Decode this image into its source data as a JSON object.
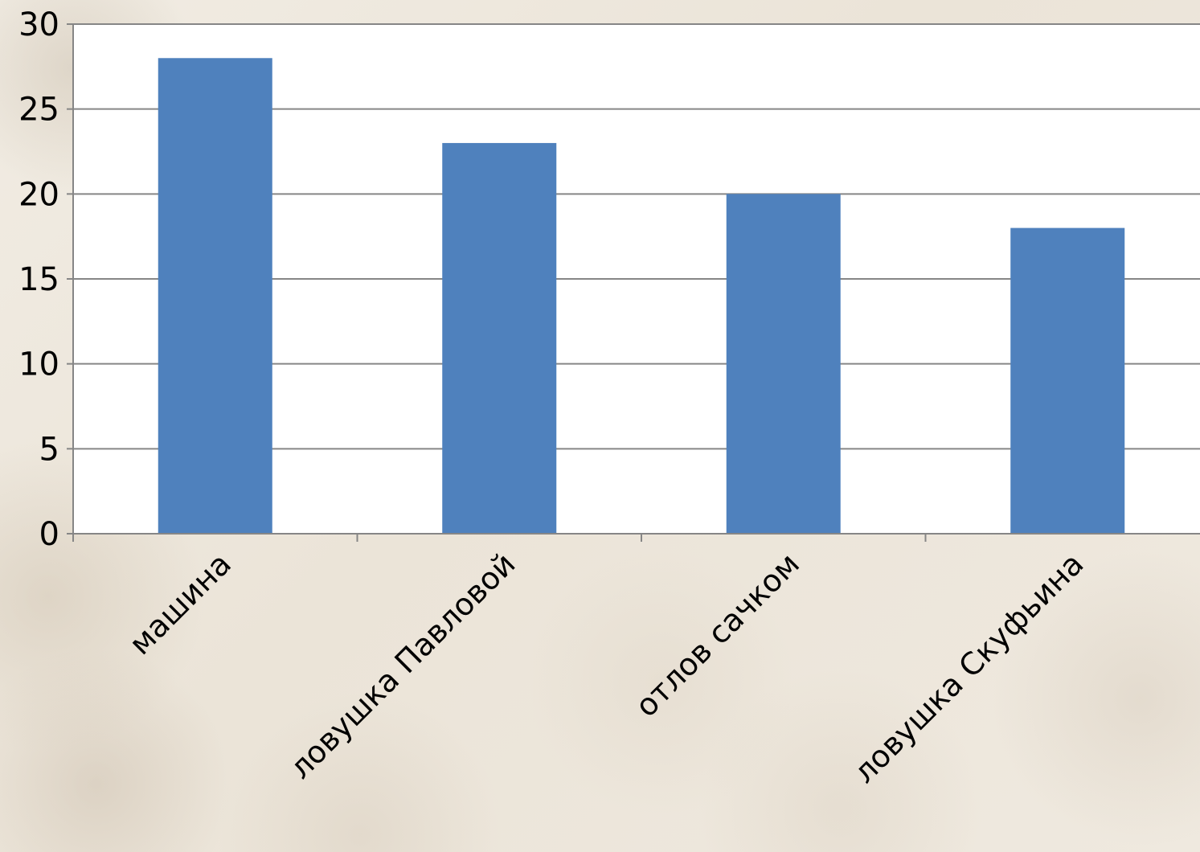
{
  "chart_data": {
    "type": "bar",
    "categories": [
      "машина",
      "ловушка Павловой",
      "отлов сачком",
      "ловушка Скуфьина"
    ],
    "values": [
      28,
      23,
      20,
      18
    ],
    "ylim": [
      0,
      30
    ],
    "yticks": [
      0,
      5,
      10,
      15,
      20,
      25,
      30
    ],
    "grid": true,
    "legend": "none",
    "colors": {
      "bar": "#4f81bd",
      "plot_background": "#ffffff",
      "gridline": "#868686",
      "axis": "#868686"
    }
  }
}
